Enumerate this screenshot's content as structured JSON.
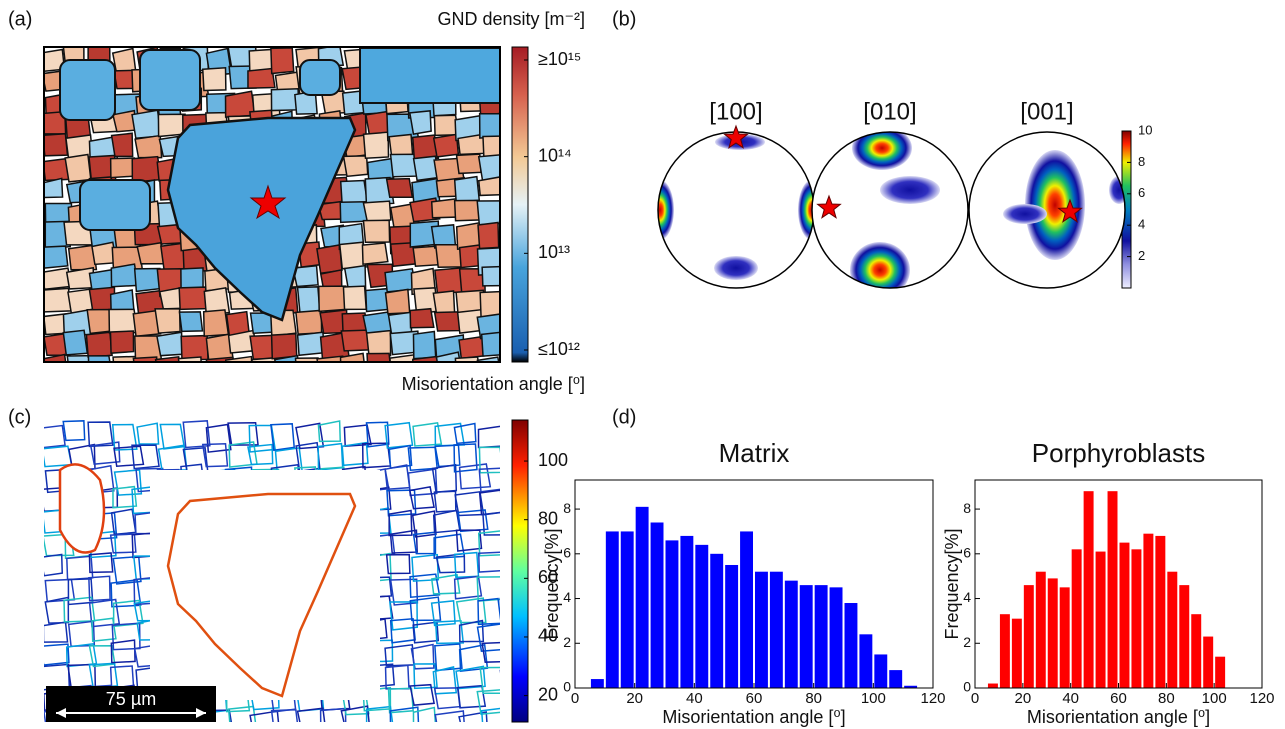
{
  "panel_labels": [
    "(a)",
    "(b)",
    "(c)",
    "(d)"
  ],
  "gnd_map": {
    "colorbar_title": "GND density [m⁻²]",
    "clim": [
      12,
      15
    ],
    "cticks": [
      {
        "value": 15,
        "label": "≥10¹⁵"
      },
      {
        "value": 14,
        "label": "10¹⁴"
      },
      {
        "value": 13,
        "label": "10¹³"
      },
      {
        "value": 12,
        "label": "≤10¹²"
      }
    ]
  },
  "pole_figures": {
    "labels": [
      "[100]",
      "[010]",
      "[001]"
    ],
    "clim": [
      0,
      10
    ],
    "cticks": [
      2,
      4,
      6,
      8,
      10
    ]
  },
  "misorientation_map": {
    "colorbar_title": "Misorientation angle [⁰]",
    "clim": [
      11,
      114
    ],
    "cticks": [
      20,
      40,
      60,
      80,
      100
    ],
    "scale_bar": "75 µm"
  },
  "chart_data": [
    {
      "type": "histogram",
      "title": "Matrix",
      "color": "#0000ff",
      "bins": [
        5,
        10,
        15,
        20,
        25,
        30,
        35,
        40,
        45,
        50,
        55,
        60,
        65,
        70,
        75,
        80,
        85,
        90,
        95,
        100,
        105,
        110,
        115
      ],
      "values": [
        0.4,
        7.0,
        7.0,
        8.1,
        7.4,
        6.6,
        6.8,
        6.4,
        6.0,
        5.5,
        7.0,
        5.2,
        5.2,
        4.8,
        4.6,
        4.6,
        4.5,
        3.8,
        2.4,
        1.5,
        0.8,
        0.1
      ],
      "xlim": [
        0,
        120
      ],
      "xticks": [
        0,
        20,
        40,
        60,
        80,
        100,
        120
      ],
      "ylim": [
        0,
        9.3
      ],
      "yticks": [
        0,
        2,
        4,
        6,
        8
      ],
      "x_label": "Misorientation angle [⁰]",
      "y_label": "Frequency[%]"
    },
    {
      "type": "histogram",
      "title": "Porphyroblasts",
      "color": "#ff0000",
      "bins": [
        5,
        10,
        15,
        20,
        25,
        30,
        35,
        40,
        45,
        50,
        55,
        60,
        65,
        70,
        75,
        80,
        85,
        90,
        95,
        100,
        105,
        110,
        115
      ],
      "values": [
        0.2,
        3.3,
        3.1,
        4.6,
        5.2,
        4.9,
        4.5,
        6.2,
        8.8,
        6.1,
        8.8,
        6.5,
        6.2,
        6.9,
        6.8,
        5.2,
        4.6,
        3.3,
        2.3,
        1.4,
        0,
        0
      ],
      "xlim": [
        0,
        120
      ],
      "xticks": [
        0,
        20,
        40,
        60,
        80,
        100,
        120
      ],
      "ylim": [
        0,
        9.3
      ],
      "yticks": [
        0,
        2,
        4,
        6,
        8
      ],
      "x_label": "Misorientation angle [⁰]",
      "y_label": "Frequency[%]"
    }
  ]
}
